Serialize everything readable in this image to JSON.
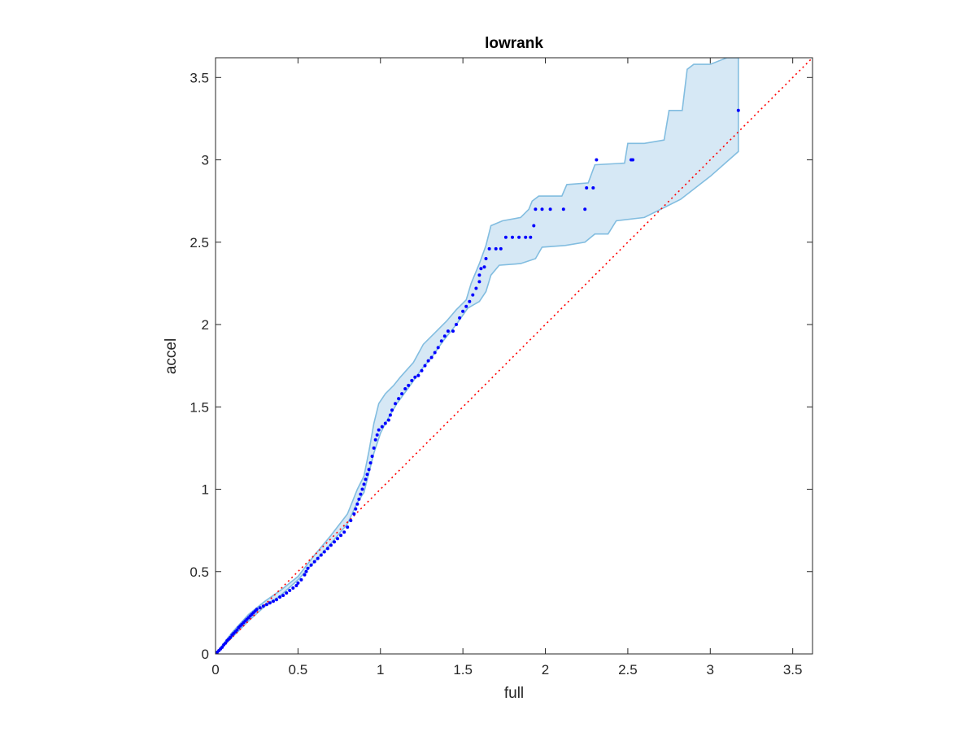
{
  "chart_data": {
    "type": "scatter",
    "title": "lowrank",
    "xlabel": "full",
    "ylabel": "accel",
    "xlim": [
      0,
      3.62
    ],
    "ylim": [
      0,
      3.62
    ],
    "xticks": [
      0,
      0.5,
      1,
      1.5,
      2,
      2.5,
      3,
      3.5
    ],
    "yticks": [
      0,
      0.5,
      1,
      1.5,
      2,
      2.5,
      3,
      3.5
    ],
    "tick_labels": [
      "0",
      "0.5",
      "1",
      "1.5",
      "2",
      "2.5",
      "3",
      "3.5"
    ],
    "grid": false,
    "legend": "none",
    "colors": {
      "points": "#0000ff",
      "reference_line": "#ff0000",
      "band_fill": "#d6e8f5",
      "band_edge": "#82bde0",
      "axes": "#262626"
    },
    "reference_line": {
      "style": "dotted",
      "x": [
        0,
        3.62
      ],
      "y": [
        0,
        3.62
      ]
    },
    "confidence_band": {
      "upper": [
        [
          0,
          0
        ],
        [
          0.1,
          0.13
        ],
        [
          0.2,
          0.24
        ],
        [
          0.3,
          0.32
        ],
        [
          0.4,
          0.39
        ],
        [
          0.5,
          0.47
        ],
        [
          0.6,
          0.6
        ],
        [
          0.7,
          0.72
        ],
        [
          0.8,
          0.85
        ],
        [
          0.86,
          1.0
        ],
        [
          0.9,
          1.08
        ],
        [
          0.93,
          1.23
        ],
        [
          0.96,
          1.4
        ],
        [
          0.99,
          1.52
        ],
        [
          1.03,
          1.58
        ],
        [
          1.08,
          1.63
        ],
        [
          1.12,
          1.68
        ],
        [
          1.2,
          1.77
        ],
        [
          1.26,
          1.88
        ],
        [
          1.33,
          1.95
        ],
        [
          1.4,
          2.02
        ],
        [
          1.46,
          2.09
        ],
        [
          1.52,
          2.15
        ],
        [
          1.55,
          2.25
        ],
        [
          1.6,
          2.37
        ],
        [
          1.64,
          2.48
        ],
        [
          1.67,
          2.6
        ],
        [
          1.74,
          2.63
        ],
        [
          1.85,
          2.65
        ],
        [
          1.9,
          2.7
        ],
        [
          1.92,
          2.75
        ],
        [
          1.96,
          2.78
        ],
        [
          2.1,
          2.78
        ],
        [
          2.13,
          2.85
        ],
        [
          2.26,
          2.86
        ],
        [
          2.3,
          2.97
        ],
        [
          2.48,
          2.98
        ],
        [
          2.5,
          3.1
        ],
        [
          2.6,
          3.1
        ],
        [
          2.72,
          3.12
        ],
        [
          2.75,
          3.3
        ],
        [
          2.83,
          3.3
        ],
        [
          2.86,
          3.55
        ],
        [
          2.9,
          3.58
        ],
        [
          3.0,
          3.58
        ],
        [
          3.1,
          3.62
        ],
        [
          3.17,
          3.62
        ]
      ],
      "lower": [
        [
          0,
          0
        ],
        [
          0.1,
          0.1
        ],
        [
          0.2,
          0.2
        ],
        [
          0.3,
          0.29
        ],
        [
          0.4,
          0.36
        ],
        [
          0.5,
          0.45
        ],
        [
          0.6,
          0.56
        ],
        [
          0.7,
          0.67
        ],
        [
          0.8,
          0.79
        ],
        [
          0.86,
          0.92
        ],
        [
          0.9,
          0.98
        ],
        [
          0.93,
          1.1
        ],
        [
          0.96,
          1.22
        ],
        [
          1.0,
          1.34
        ],
        [
          1.04,
          1.42
        ],
        [
          1.1,
          1.52
        ],
        [
          1.18,
          1.63
        ],
        [
          1.25,
          1.73
        ],
        [
          1.31,
          1.8
        ],
        [
          1.38,
          1.9
        ],
        [
          1.46,
          2.0
        ],
        [
          1.53,
          2.1
        ],
        [
          1.6,
          2.14
        ],
        [
          1.64,
          2.2
        ],
        [
          1.67,
          2.3
        ],
        [
          1.72,
          2.36
        ],
        [
          1.85,
          2.37
        ],
        [
          1.94,
          2.4
        ],
        [
          1.98,
          2.47
        ],
        [
          2.12,
          2.48
        ],
        [
          2.24,
          2.5
        ],
        [
          2.3,
          2.55
        ],
        [
          2.38,
          2.55
        ],
        [
          2.43,
          2.63
        ],
        [
          2.6,
          2.65
        ],
        [
          2.82,
          2.76
        ],
        [
          3.0,
          2.9
        ],
        [
          3.17,
          3.05
        ]
      ]
    },
    "series": [
      {
        "points": [
          [
            0,
            0
          ],
          [
            0.01,
            0.01
          ],
          [
            0.02,
            0.02
          ],
          [
            0.03,
            0.03
          ],
          [
            0.04,
            0.04
          ],
          [
            0.05,
            0.055
          ],
          [
            0.06,
            0.065
          ],
          [
            0.07,
            0.08
          ],
          [
            0.08,
            0.09
          ],
          [
            0.09,
            0.1
          ],
          [
            0.1,
            0.115
          ],
          [
            0.11,
            0.125
          ],
          [
            0.12,
            0.135
          ],
          [
            0.13,
            0.145
          ],
          [
            0.14,
            0.16
          ],
          [
            0.15,
            0.17
          ],
          [
            0.16,
            0.18
          ],
          [
            0.17,
            0.19
          ],
          [
            0.18,
            0.2
          ],
          [
            0.19,
            0.21
          ],
          [
            0.2,
            0.22
          ],
          [
            0.21,
            0.23
          ],
          [
            0.22,
            0.24
          ],
          [
            0.23,
            0.25
          ],
          [
            0.24,
            0.26
          ],
          [
            0.25,
            0.27
          ],
          [
            0.27,
            0.28
          ],
          [
            0.29,
            0.29
          ],
          [
            0.31,
            0.3
          ],
          [
            0.33,
            0.31
          ],
          [
            0.35,
            0.32
          ],
          [
            0.37,
            0.33
          ],
          [
            0.39,
            0.345
          ],
          [
            0.41,
            0.355
          ],
          [
            0.43,
            0.37
          ],
          [
            0.45,
            0.385
          ],
          [
            0.47,
            0.4
          ],
          [
            0.49,
            0.415
          ],
          [
            0.5,
            0.43
          ],
          [
            0.52,
            0.45
          ],
          [
            0.54,
            0.48
          ],
          [
            0.55,
            0.5
          ],
          [
            0.56,
            0.52
          ],
          [
            0.58,
            0.54
          ],
          [
            0.6,
            0.56
          ],
          [
            0.62,
            0.58
          ],
          [
            0.64,
            0.6
          ],
          [
            0.66,
            0.62
          ],
          [
            0.68,
            0.64
          ],
          [
            0.7,
            0.66
          ],
          [
            0.72,
            0.68
          ],
          [
            0.74,
            0.7
          ],
          [
            0.76,
            0.72
          ],
          [
            0.78,
            0.74
          ],
          [
            0.8,
            0.77
          ],
          [
            0.82,
            0.81
          ],
          [
            0.84,
            0.85
          ],
          [
            0.85,
            0.88
          ],
          [
            0.86,
            0.91
          ],
          [
            0.87,
            0.94
          ],
          [
            0.88,
            0.97
          ],
          [
            0.89,
            1.0
          ],
          [
            0.9,
            1.03
          ],
          [
            0.91,
            1.06
          ],
          [
            0.92,
            1.09
          ],
          [
            0.93,
            1.12
          ],
          [
            0.94,
            1.16
          ],
          [
            0.95,
            1.2
          ],
          [
            0.96,
            1.25
          ],
          [
            0.97,
            1.3
          ],
          [
            0.98,
            1.33
          ],
          [
            0.99,
            1.36
          ],
          [
            1.01,
            1.38
          ],
          [
            1.03,
            1.4
          ],
          [
            1.05,
            1.42
          ],
          [
            1.06,
            1.45
          ],
          [
            1.07,
            1.48
          ],
          [
            1.09,
            1.52
          ],
          [
            1.11,
            1.55
          ],
          [
            1.13,
            1.58
          ],
          [
            1.15,
            1.61
          ],
          [
            1.17,
            1.63
          ],
          [
            1.19,
            1.66
          ],
          [
            1.21,
            1.68
          ],
          [
            1.23,
            1.69
          ],
          [
            1.25,
            1.72
          ],
          [
            1.27,
            1.75
          ],
          [
            1.29,
            1.78
          ],
          [
            1.31,
            1.8
          ],
          [
            1.33,
            1.83
          ],
          [
            1.35,
            1.86
          ],
          [
            1.37,
            1.9
          ],
          [
            1.39,
            1.93
          ],
          [
            1.41,
            1.96
          ],
          [
            1.44,
            1.96
          ],
          [
            1.46,
            2.0
          ],
          [
            1.48,
            2.04
          ],
          [
            1.5,
            2.08
          ],
          [
            1.52,
            2.11
          ],
          [
            1.54,
            2.14
          ],
          [
            1.56,
            2.18
          ],
          [
            1.58,
            2.22
          ],
          [
            1.6,
            2.26
          ],
          [
            1.6,
            2.3
          ],
          [
            1.61,
            2.34
          ],
          [
            1.63,
            2.35
          ],
          [
            1.64,
            2.4
          ],
          [
            1.66,
            2.46
          ],
          [
            1.7,
            2.46
          ],
          [
            1.73,
            2.46
          ],
          [
            1.76,
            2.53
          ],
          [
            1.8,
            2.53
          ],
          [
            1.84,
            2.53
          ],
          [
            1.88,
            2.53
          ],
          [
            1.91,
            2.53
          ],
          [
            1.93,
            2.6
          ],
          [
            1.94,
            2.7
          ],
          [
            1.98,
            2.7
          ],
          [
            2.03,
            2.7
          ],
          [
            2.11,
            2.7
          ],
          [
            2.24,
            2.7
          ],
          [
            2.25,
            2.83
          ],
          [
            2.29,
            2.83
          ],
          [
            2.31,
            3.0
          ],
          [
            2.52,
            3.0
          ],
          [
            2.53,
            3.0
          ],
          [
            3.17,
            3.3
          ]
        ]
      }
    ]
  }
}
